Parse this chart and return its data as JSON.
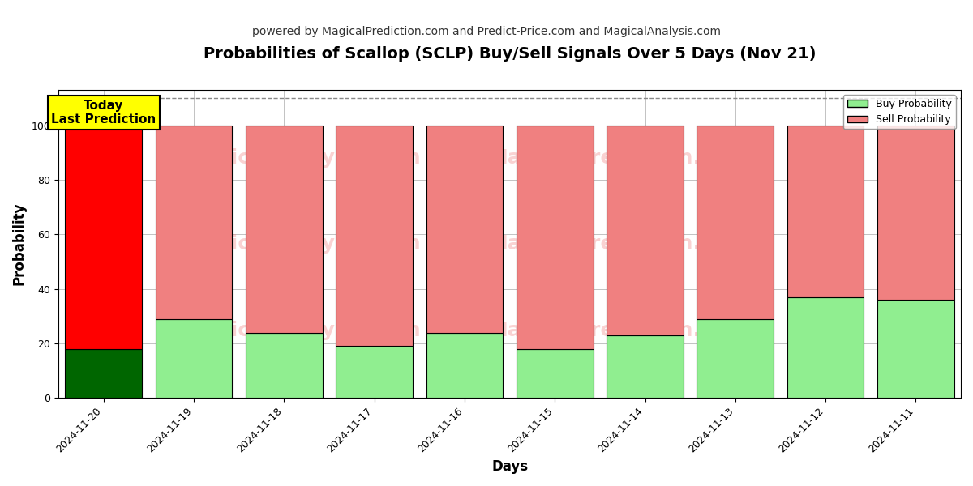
{
  "title": "Probabilities of Scallop (SCLP) Buy/Sell Signals Over 5 Days (Nov 21)",
  "subtitle": "powered by MagicalPrediction.com and Predict-Price.com and MagicalAnalysis.com",
  "xlabel": "Days",
  "ylabel": "Probability",
  "dates": [
    "2024-11-20",
    "2024-11-19",
    "2024-11-18",
    "2024-11-17",
    "2024-11-16",
    "2024-11-15",
    "2024-11-14",
    "2024-11-13",
    "2024-11-12",
    "2024-11-11"
  ],
  "buy_values": [
    18,
    29,
    24,
    19,
    24,
    18,
    23,
    29,
    37,
    36
  ],
  "sell_values": [
    82,
    71,
    76,
    81,
    76,
    82,
    77,
    71,
    63,
    64
  ],
  "buy_colors_per_bar": [
    "#006600",
    "#90EE90",
    "#90EE90",
    "#90EE90",
    "#90EE90",
    "#90EE90",
    "#90EE90",
    "#90EE90",
    "#90EE90",
    "#90EE90"
  ],
  "sell_colors_per_bar": [
    "#FF0000",
    "#F08080",
    "#F08080",
    "#F08080",
    "#F08080",
    "#F08080",
    "#F08080",
    "#F08080",
    "#F08080",
    "#F08080"
  ],
  "bar_edge_color": "#000000",
  "bar_edge_width": 0.8,
  "bar_width": 0.85,
  "ylim": [
    0,
    113
  ],
  "yticks": [
    0,
    20,
    40,
    60,
    80,
    100
  ],
  "grid_color": "#aaaaaa",
  "grid_linestyle": "-",
  "grid_linewidth": 0.5,
  "dashed_line_y": 110,
  "dashed_line_color": "#888888",
  "dashed_line_style": "--",
  "today_label_text": "Today\nLast Prediction",
  "today_box_facecolor": "#FFFF00",
  "today_box_edgecolor": "#000000",
  "legend_buy_color": "#90EE90",
  "legend_sell_color": "#F08080",
  "legend_buy_label": "Buy Probability",
  "legend_sell_label": "Sell Probability",
  "watermark_texts": [
    "MagicalAnalysis.com",
    "MagicalPrediction.com"
  ],
  "watermark_color": "#F08080",
  "watermark_alpha": 0.35,
  "background_color": "#ffffff",
  "title_fontsize": 14,
  "subtitle_fontsize": 10,
  "axis_label_fontsize": 12,
  "tick_fontsize": 9
}
